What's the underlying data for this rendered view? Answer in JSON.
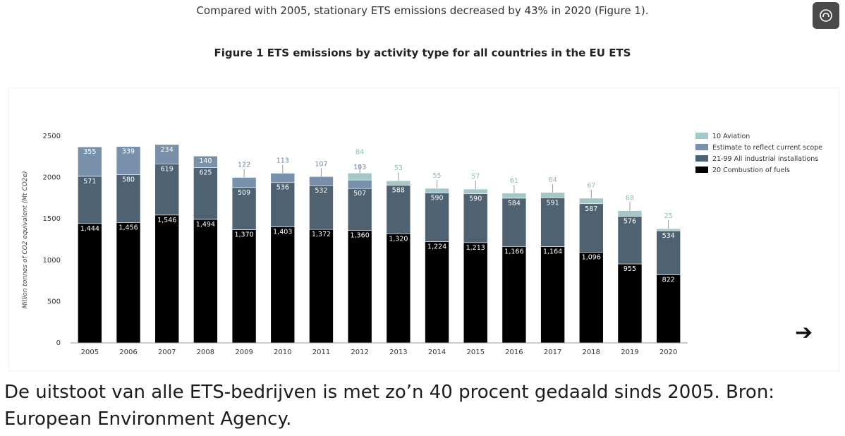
{
  "intro_text": "Compared with 2005, stationary ETS emissions decreased by 43% in 2020 (Figure 1).",
  "figure_title": "Figure 1 ETS emissions by activity type for all countries in the EU ETS",
  "caption": "De uitstoot van alle ETS-bedrijven is met zo’n 40 procent gedaald sinds 2005. Bron: European Environment Agency.",
  "icons": {
    "fullscreen": "fullscreen-icon",
    "next": "arrow-right-icon"
  },
  "chart_data": {
    "type": "bar",
    "stacked": true,
    "title": "Figure 1 ETS emissions by activity type for all countries in the EU ETS",
    "ylabel": "Million tonnes of CO2 equivalent (Mt CO2e)",
    "xlabel": "",
    "ylim": [
      0,
      2500
    ],
    "yticks": [
      0,
      500,
      1000,
      1500,
      2000,
      2500
    ],
    "legend_position": "top-right",
    "grid": false,
    "categories": [
      "2005",
      "2006",
      "2007",
      "2008",
      "2009",
      "2010",
      "2011",
      "2012",
      "2013",
      "2014",
      "2015",
      "2016",
      "2017",
      "2018",
      "2019",
      "2020"
    ],
    "series": [
      {
        "name": "20 Combustion of fuels",
        "color": "#000000",
        "values": [
          1444,
          1456,
          1546,
          1494,
          1370,
          1403,
          1372,
          1360,
          1320,
          1224,
          1213,
          1166,
          1164,
          1096,
          955,
          822
        ],
        "labels": [
          "1,444",
          "1,456",
          "1,546",
          "1,494",
          "1,370",
          "1,403",
          "1,372",
          "1,360",
          "1,320",
          "1,224",
          "1,213",
          "1,166",
          "1,164",
          "1,096",
          "955",
          "822"
        ]
      },
      {
        "name": "21-99 All industrial installations",
        "color": "#4f6272",
        "values": [
          571,
          580,
          619,
          625,
          509,
          536,
          532,
          507,
          588,
          590,
          590,
          584,
          591,
          587,
          576,
          534
        ],
        "labels": [
          "571",
          "580",
          "619",
          "625",
          "509",
          "536",
          "532",
          "507",
          "588",
          "590",
          "590",
          "584",
          "591",
          "587",
          "576",
          "534"
        ]
      },
      {
        "name": "Estimate to reflect current scope",
        "color": "#7990aa",
        "values": [
          355,
          339,
          234,
          140,
          122,
          113,
          107,
          103,
          0,
          0,
          0,
          0,
          0,
          0,
          0,
          0
        ],
        "labels": [
          "355",
          "339",
          "234",
          "140",
          "122",
          "113",
          "107",
          "103",
          "",
          "",
          "",
          "",
          "",
          "",
          "",
          ""
        ]
      },
      {
        "name": "10 Aviation",
        "color": "#a4c8c8",
        "values": [
          0,
          0,
          0,
          0,
          0,
          0,
          0,
          84,
          53,
          55,
          57,
          61,
          64,
          67,
          68,
          25
        ],
        "labels": [
          "",
          "",
          "",
          "",
          "",
          "",
          "",
          "84",
          "53",
          "55",
          "57",
          "61",
          "64",
          "67",
          "68",
          "25"
        ]
      }
    ]
  }
}
